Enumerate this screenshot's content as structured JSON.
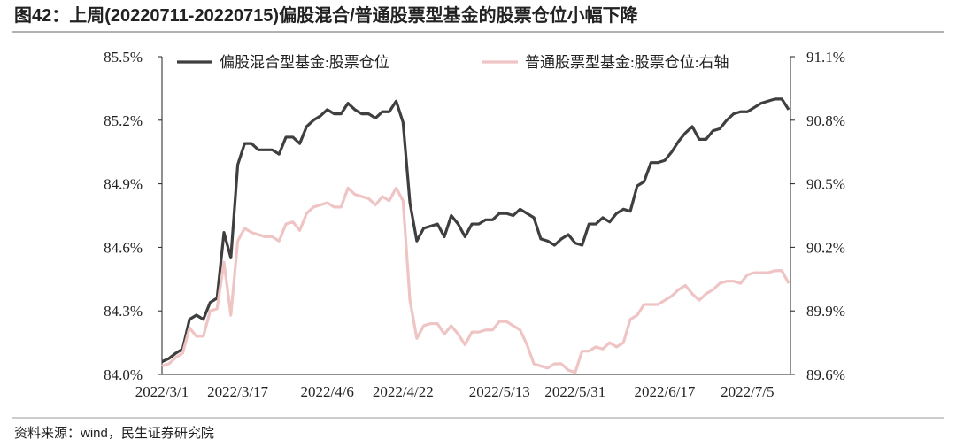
{
  "chart_data": {
    "type": "line",
    "title": "图42：上周(20220711-20220715)偏股混合/普通股票型基金的股票仓位小幅下降",
    "source": "资料来源：wind，民生证券研究院",
    "legend": "top",
    "categories": [
      "2022/3/1",
      null,
      null,
      null,
      null,
      null,
      null,
      null,
      null,
      null,
      null,
      "2022/3/17",
      null,
      null,
      null,
      null,
      null,
      null,
      null,
      null,
      null,
      null,
      null,
      null,
      "2022/4/6",
      null,
      null,
      null,
      null,
      null,
      null,
      null,
      null,
      null,
      null,
      "2022/4/22",
      null,
      null,
      null,
      null,
      null,
      null,
      null,
      null,
      null,
      null,
      null,
      null,
      null,
      "2022/5/13",
      null,
      null,
      null,
      null,
      null,
      null,
      null,
      null,
      null,
      null,
      "2022/5/31",
      null,
      null,
      null,
      null,
      null,
      null,
      null,
      null,
      null,
      null,
      null,
      null,
      "2022/6/17",
      null,
      null,
      null,
      null,
      null,
      null,
      null,
      null,
      null,
      null,
      null,
      "2022/7/5",
      null,
      null,
      null,
      null,
      null,
      null
    ],
    "series": [
      {
        "name": "偏股混合型基金:股票仓位",
        "color": "#3f3f3f",
        "values": [
          84.06,
          84.075,
          84.1,
          84.12,
          84.26,
          84.28,
          84.26,
          84.34,
          84.36,
          84.67,
          84.55,
          84.99,
          85.09,
          85.09,
          85.06,
          85.06,
          85.06,
          85.04,
          85.12,
          85.12,
          85.09,
          85.17,
          85.2,
          85.22,
          85.25,
          85.23,
          85.23,
          85.28,
          85.25,
          85.23,
          85.23,
          85.21,
          85.24,
          85.24,
          85.29,
          85.19,
          84.81,
          84.63,
          84.69,
          84.7,
          84.71,
          84.65,
          84.75,
          84.71,
          84.65,
          84.71,
          84.71,
          84.73,
          84.73,
          84.76,
          84.76,
          84.75,
          84.78,
          84.76,
          84.74,
          84.64,
          84.63,
          84.61,
          84.64,
          84.66,
          84.62,
          84.61,
          84.71,
          84.71,
          84.74,
          84.72,
          84.76,
          84.78,
          84.77,
          84.89,
          84.91,
          85.0,
          85.0,
          85.01,
          85.05,
          85.1,
          85.14,
          85.17,
          85.11,
          85.11,
          85.15,
          85.16,
          85.2,
          85.23,
          85.24,
          85.24,
          85.26,
          85.28,
          85.29,
          85.3,
          85.3,
          85.25
        ]
      },
      {
        "name": "普通股票型基金:股票仓位:右轴",
        "color": "#efc4c4",
        "axis": "y2",
        "values": [
          89.64,
          89.65,
          89.68,
          89.7,
          89.82,
          89.78,
          89.78,
          89.9,
          89.91,
          90.13,
          89.88,
          90.23,
          90.29,
          90.27,
          90.26,
          90.25,
          90.25,
          90.23,
          90.31,
          90.32,
          90.28,
          90.36,
          90.39,
          90.4,
          90.41,
          90.39,
          90.39,
          90.48,
          90.45,
          90.44,
          90.43,
          90.4,
          90.44,
          90.42,
          90.48,
          90.42,
          89.95,
          89.77,
          89.83,
          89.84,
          89.84,
          89.79,
          89.83,
          89.79,
          89.74,
          89.8,
          89.8,
          89.81,
          89.81,
          89.85,
          89.85,
          89.83,
          89.81,
          89.74,
          89.65,
          89.64,
          89.63,
          89.65,
          89.65,
          89.62,
          89.61,
          89.71,
          89.71,
          89.73,
          89.72,
          89.75,
          89.73,
          89.75,
          89.86,
          89.88,
          89.93,
          89.93,
          89.93,
          89.95,
          89.97,
          90.0,
          90.02,
          89.98,
          89.95,
          89.98,
          90.0,
          90.03,
          90.04,
          90.04,
          90.03,
          90.07,
          90.08,
          90.08,
          90.08,
          90.09,
          90.09,
          90.03
        ]
      }
    ],
    "ylim": [
      84.0,
      85.5
    ],
    "yticks": [
      {
        "value": 84.0,
        "label": "84.0%"
      },
      {
        "value": 84.3,
        "label": "84.3%"
      },
      {
        "value": 84.6,
        "label": "84.6%"
      },
      {
        "value": 84.9,
        "label": "84.9%"
      },
      {
        "value": 85.2,
        "label": "85.2%"
      },
      {
        "value": 85.5,
        "label": "85.5%"
      }
    ],
    "y2lim": [
      89.6,
      91.1
    ],
    "y2ticks": [
      {
        "value": 89.6,
        "label": "89.6%"
      },
      {
        "value": 89.9,
        "label": "89.9%"
      },
      {
        "value": 90.2,
        "label": "90.2%"
      },
      {
        "value": 90.5,
        "label": "90.5%"
      },
      {
        "value": 90.8,
        "label": "90.8%"
      },
      {
        "value": 91.1,
        "label": "91.1%"
      }
    ]
  }
}
